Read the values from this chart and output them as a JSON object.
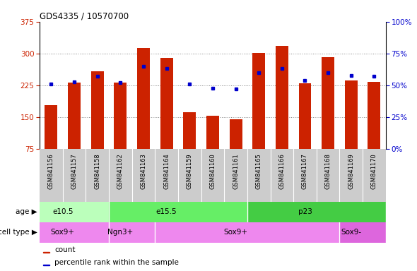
{
  "title": "GDS4335 / 10570700",
  "samples": [
    "GSM841156",
    "GSM841157",
    "GSM841158",
    "GSM841162",
    "GSM841163",
    "GSM841164",
    "GSM841159",
    "GSM841160",
    "GSM841161",
    "GSM841165",
    "GSM841166",
    "GSM841167",
    "GSM841168",
    "GSM841169",
    "GSM841170"
  ],
  "counts": [
    178,
    232,
    258,
    232,
    313,
    290,
    162,
    153,
    145,
    302,
    318,
    230,
    292,
    236,
    233
  ],
  "percentiles": [
    51,
    53,
    57,
    52,
    65,
    63,
    51,
    48,
    47,
    60,
    63,
    54,
    60,
    58,
    57
  ],
  "ylim_left": [
    75,
    375
  ],
  "ylim_right": [
    0,
    100
  ],
  "yticks_left": [
    75,
    150,
    225,
    300,
    375
  ],
  "yticks_right": [
    0,
    25,
    50,
    75,
    100
  ],
  "ytick_labels_right": [
    "0%",
    "25%",
    "50%",
    "75%",
    "100%"
  ],
  "bar_color": "#cc2200",
  "dot_color": "#0000cc",
  "grid_dotted_color": "#888888",
  "age_groups": [
    {
      "label": "e10.5",
      "start": 0,
      "end": 3,
      "color": "#bbffbb"
    },
    {
      "label": "e15.5",
      "start": 3,
      "end": 9,
      "color": "#66ee66"
    },
    {
      "label": "p23",
      "start": 9,
      "end": 15,
      "color": "#44cc44"
    }
  ],
  "cell_groups": [
    {
      "label": "Sox9+",
      "start": 0,
      "end": 3,
      "color": "#ee88ee"
    },
    {
      "label": "Ngn3+",
      "start": 3,
      "end": 5,
      "color": "#ee88ee"
    },
    {
      "label": "Sox9+",
      "start": 5,
      "end": 13,
      "color": "#ee88ee"
    },
    {
      "label": "Sox9-",
      "start": 13,
      "end": 15,
      "color": "#dd66dd"
    }
  ],
  "xlabel_bg_color": "#cccccc",
  "bg_color": "#ffffff",
  "bar_bottom": 75
}
